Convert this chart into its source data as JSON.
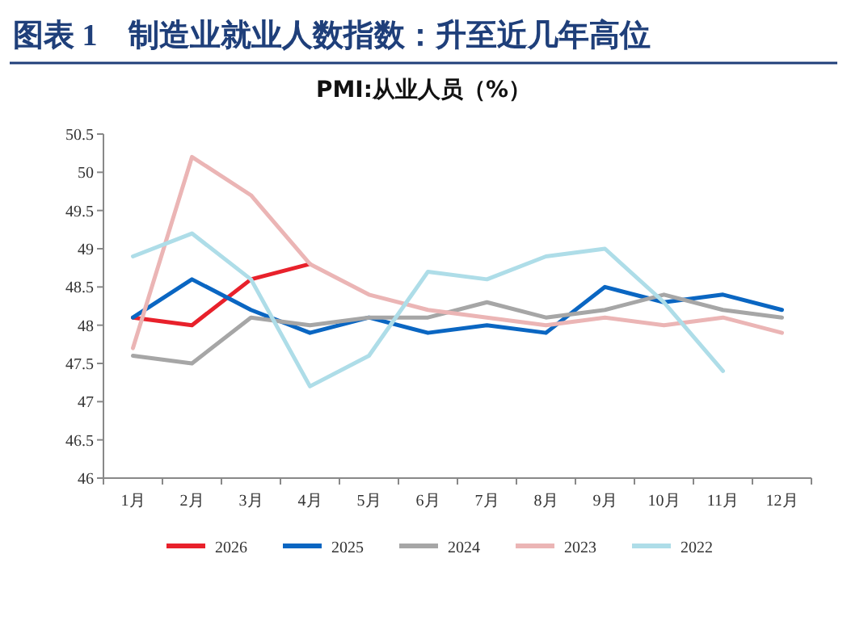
{
  "chart_data": {
    "type": "line",
    "title": "图表 1　制造业就业人数指数：升至近几年高位",
    "subtitle": "PMI:从业人员（%）",
    "categories": [
      "1月",
      "2月",
      "3月",
      "4月",
      "5月",
      "6月",
      "7月",
      "8月",
      "9月",
      "10月",
      "11月",
      "12月"
    ],
    "series": [
      {
        "name": "2026",
        "color": "#e8212b",
        "values": [
          48.1,
          48.0,
          48.6,
          48.8,
          null,
          null,
          null,
          null,
          null,
          null,
          null,
          null
        ]
      },
      {
        "name": "2025",
        "color": "#0a66c2",
        "values": [
          48.1,
          48.6,
          48.2,
          47.9,
          48.1,
          47.9,
          48.0,
          47.9,
          48.5,
          48.3,
          48.4,
          48.2
        ]
      },
      {
        "name": "2024",
        "color": "#a6a6a6",
        "values": [
          47.6,
          47.5,
          48.1,
          48.0,
          48.1,
          48.1,
          48.3,
          48.1,
          48.2,
          48.4,
          48.2,
          48.1
        ]
      },
      {
        "name": "2023",
        "color": "#ebb5b5",
        "values": [
          47.7,
          50.2,
          49.7,
          48.8,
          48.4,
          48.2,
          48.1,
          48.0,
          48.1,
          48.0,
          48.1,
          47.9
        ]
      },
      {
        "name": "2022",
        "color": "#aedde8",
        "values": [
          48.9,
          49.2,
          48.6,
          47.2,
          47.6,
          48.7,
          48.6,
          48.9,
          49.0,
          48.3,
          47.4,
          null
        ]
      }
    ],
    "ylim": [
      46,
      50.5
    ],
    "yticks": [
      46,
      46.5,
      47,
      47.5,
      48,
      48.5,
      49,
      49.5,
      50,
      50.5
    ],
    "grid": false,
    "legend": "bottom",
    "marker": "none",
    "line_style": "solid"
  }
}
